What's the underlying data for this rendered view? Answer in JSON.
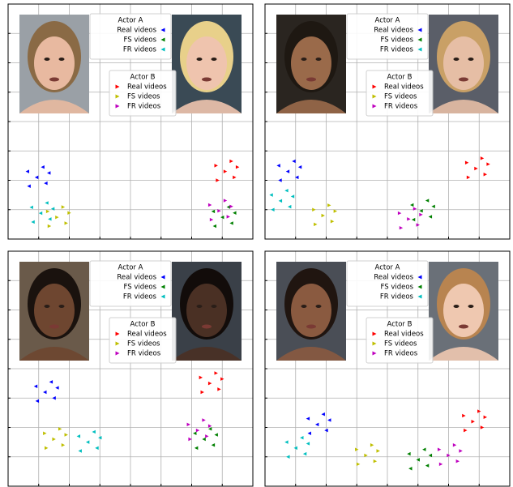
{
  "chart_data": [
    {
      "type": "scatter",
      "xlim": [
        0,
        8
      ],
      "ylim": [
        0,
        8
      ],
      "xticks": [
        1,
        2,
        3,
        4,
        5,
        6,
        7
      ],
      "yticks": [
        1,
        2,
        3,
        4,
        5,
        6,
        7
      ],
      "grid": true,
      "legends": [
        {
          "title": "Actor A",
          "series": [
            {
              "name": "Real videos",
              "color": "#0000ff",
              "x": [
                0.93,
                0.63,
                1.23,
                1.13,
                0.68,
                1.33
              ],
              "y": [
                2.1,
                2.3,
                1.9,
                2.45,
                1.8,
                2.25
              ]
            },
            {
              "name": "FS videos",
              "color": "#008000",
              "x": [
                7.0,
                6.7,
                7.3,
                7.2,
                6.75,
                7.4
              ],
              "y": [
                0.74,
                0.94,
                0.54,
                1.09,
                0.44,
                0.89
              ]
            },
            {
              "name": "FR videos",
              "color": "#00bfbf",
              "x": [
                1.06,
                0.76,
                1.36,
                1.26,
                0.81,
                1.46
              ],
              "y": [
                0.88,
                1.08,
                0.68,
                1.23,
                0.58,
                1.03
              ]
            }
          ]
        },
        {
          "title": "Actor B",
          "series": [
            {
              "name": "Real videos",
              "color": "#ff0000",
              "x": [
                7.1,
                6.8,
                7.4,
                7.3,
                6.85,
                7.5
              ],
              "y": [
                2.3,
                2.5,
                2.1,
                2.65,
                2.0,
                2.45
              ]
            },
            {
              "name": "FS videos",
              "color": "#bfbf00",
              "x": [
                1.6,
                1.3,
                1.9,
                1.8,
                1.35,
                2.0
              ],
              "y": [
                0.74,
                0.94,
                0.54,
                1.09,
                0.44,
                0.89
              ]
            },
            {
              "name": "FR videos",
              "color": "#bf00bf",
              "x": [
                6.9,
                6.6,
                7.2,
                7.1,
                6.65,
                7.3
              ],
              "y": [
                0.96,
                1.16,
                0.76,
                1.31,
                0.66,
                1.11
              ]
            }
          ]
        }
      ]
    },
    {
      "type": "scatter",
      "xlim": [
        0,
        8
      ],
      "ylim": [
        0,
        8
      ],
      "xticks": [
        1,
        2,
        3,
        4,
        5,
        6,
        7
      ],
      "yticks": [
        1,
        2,
        3,
        4,
        5,
        6,
        7
      ],
      "grid": true,
      "legends": [
        {
          "title": "Actor A",
          "series": [
            {
              "name": "Real videos",
              "color": "#0000ff",
              "x": [
                0.74,
                0.44,
                1.04,
                0.94,
                0.49,
                1.14
              ],
              "y": [
                2.3,
                2.5,
                2.1,
                2.65,
                2.0,
                2.45
              ]
            },
            {
              "name": "FS videos",
              "color": "#008000",
              "x": [
                5.1,
                4.8,
                5.4,
                5.3,
                4.85,
                5.5
              ],
              "y": [
                0.96,
                1.16,
                0.76,
                1.31,
                0.66,
                1.11
              ]
            },
            {
              "name": "FR videos",
              "color": "#00bfbf",
              "x": [
                0.5,
                0.2,
                0.8,
                0.7,
                0.25,
                0.9
              ],
              "y": [
                1.3,
                1.5,
                1.1,
                1.65,
                1.0,
                1.45
              ]
            }
          ]
        },
        {
          "title": "Actor B",
          "series": [
            {
              "name": "Real videos",
              "color": "#ff0000",
              "x": [
                6.9,
                6.6,
                7.2,
                7.1,
                6.65,
                7.3
              ],
              "y": [
                2.4,
                2.6,
                2.2,
                2.75,
                2.1,
                2.55
              ]
            },
            {
              "name": "FS videos",
              "color": "#bfbf00",
              "x": [
                1.9,
                1.6,
                2.2,
                2.1,
                1.65,
                2.3
              ],
              "y": [
                0.8,
                1.0,
                0.6,
                1.15,
                0.5,
                0.95
              ]
            },
            {
              "name": "FR videos",
              "color": "#bf00bf",
              "x": [
                4.7,
                4.4,
                5.0,
                4.9,
                4.45,
                5.1
              ],
              "y": [
                0.68,
                0.88,
                0.48,
                1.03,
                0.38,
                0.83
              ]
            }
          ]
        }
      ]
    },
    {
      "type": "scatter",
      "xlim": [
        0,
        8
      ],
      "ylim": [
        0,
        8
      ],
      "xticks": [
        1,
        2,
        3,
        4,
        5,
        6,
        7
      ],
      "yticks": [
        1,
        2,
        3,
        4,
        5,
        6,
        7
      ],
      "grid": true,
      "legends": [
        {
          "title": "Actor A",
          "series": [
            {
              "name": "Real videos",
              "color": "#0000ff",
              "x": [
                1.2,
                0.9,
                1.5,
                1.4,
                0.95,
                1.6
              ],
              "y": [
                3.2,
                3.4,
                3.0,
                3.55,
                2.9,
                3.35
              ]
            },
            {
              "name": "FS videos",
              "color": "#008000",
              "x": [
                6.4,
                6.1,
                6.7,
                6.6,
                6.15,
                6.8
              ],
              "y": [
                1.6,
                1.8,
                1.4,
                1.95,
                1.3,
                1.75
              ]
            },
            {
              "name": "FR videos",
              "color": "#00bfbf",
              "x": [
                2.6,
                2.3,
                2.9,
                2.8,
                2.35,
                3.0
              ],
              "y": [
                1.5,
                1.7,
                1.3,
                1.85,
                1.2,
                1.65
              ]
            }
          ]
        },
        {
          "title": "Actor B",
          "series": [
            {
              "name": "Real videos",
              "color": "#ff0000",
              "x": [
                6.6,
                6.3,
                6.9,
                6.8,
                6.35,
                7.0
              ],
              "y": [
                3.5,
                3.7,
                3.3,
                3.85,
                3.2,
                3.65
              ]
            },
            {
              "name": "FS videos",
              "color": "#bfbf00",
              "x": [
                1.5,
                1.2,
                1.8,
                1.7,
                1.25,
                1.9
              ],
              "y": [
                1.6,
                1.8,
                1.4,
                1.95,
                1.3,
                1.75
              ]
            },
            {
              "name": "FR videos",
              "color": "#bf00bf",
              "x": [
                6.2,
                5.9,
                6.5,
                6.4,
                5.95,
                6.6
              ],
              "y": [
                1.9,
                2.1,
                1.7,
                2.25,
                1.6,
                2.05
              ]
            }
          ]
        }
      ]
    },
    {
      "type": "scatter",
      "xlim": [
        0,
        8
      ],
      "ylim": [
        0,
        8
      ],
      "xticks": [
        1,
        2,
        3,
        4,
        5,
        6,
        7
      ],
      "yticks": [
        1,
        2,
        3,
        4,
        5,
        6,
        7
      ],
      "grid": true,
      "legends": [
        {
          "title": "Actor A",
          "series": [
            {
              "name": "Real videos",
              "color": "#0000ff",
              "x": [
                1.7,
                1.4,
                2.0,
                1.9,
                1.45,
                2.1
              ],
              "y": [
                2.1,
                2.3,
                1.9,
                2.45,
                1.8,
                2.25
              ]
            },
            {
              "name": "FS videos",
              "color": "#008000",
              "x": [
                5.0,
                4.7,
                5.3,
                5.2,
                4.75,
                5.4
              ],
              "y": [
                0.9,
                1.1,
                0.7,
                1.25,
                0.6,
                1.05
              ]
            },
            {
              "name": "FR videos",
              "color": "#00bfbf",
              "x": [
                1.0,
                0.7,
                1.3,
                1.2,
                0.75,
                1.4
              ],
              "y": [
                1.3,
                1.5,
                1.1,
                1.65,
                1.0,
                1.45
              ]
            }
          ]
        },
        {
          "title": "Actor B",
          "series": [
            {
              "name": "Real videos",
              "color": "#ff0000",
              "x": [
                6.8,
                6.5,
                7.1,
                7.0,
                6.55,
                7.2
              ],
              "y": [
                2.2,
                2.4,
                2.0,
                2.55,
                1.9,
                2.35
              ]
            },
            {
              "name": "FS videos",
              "color": "#bfbf00",
              "x": [
                3.3,
                3.0,
                3.6,
                3.5,
                3.05,
                3.7
              ],
              "y": [
                1.05,
                1.25,
                0.85,
                1.4,
                0.75,
                1.2
              ]
            },
            {
              "name": "FR videos",
              "color": "#bf00bf",
              "x": [
                6.0,
                5.7,
                6.3,
                6.2,
                5.75,
                6.4
              ],
              "y": [
                1.05,
                1.25,
                0.85,
                1.4,
                0.75,
                1.2
              ]
            }
          ]
        }
      ]
    }
  ]
}
